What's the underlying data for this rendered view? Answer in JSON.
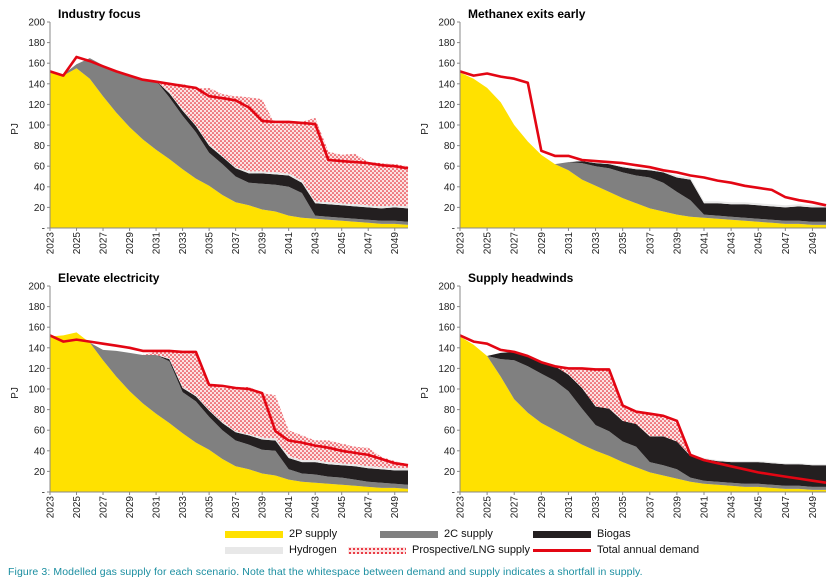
{
  "caption": "Figure 3: Modelled gas supply for each scenario. Note that the whitespace between demand and supply indicates a shortfall in supply.",
  "legend": {
    "items": [
      {
        "label": "2P supply",
        "color": "#FFE100",
        "kind": "area"
      },
      {
        "label": "2C supply",
        "color": "#808080",
        "kind": "area"
      },
      {
        "label": "Biogas",
        "color": "#231F20",
        "kind": "area"
      },
      {
        "label": "Hydrogen",
        "color": "#E8E8E8",
        "kind": "area"
      },
      {
        "label": "Prospective/LNG supply",
        "color": "#F5B7B7",
        "kind": "dotted"
      },
      {
        "label": "Total annual demand",
        "color": "#E30613",
        "kind": "line"
      }
    ]
  },
  "colors": {
    "supply_2p": "#FFE100",
    "supply_2c": "#808080",
    "biogas": "#231F20",
    "hydrogen": "#E8E8E8",
    "prospective_lng": "#F5B7B7",
    "demand": "#E30613"
  },
  "chart_data": [
    {
      "type": "area",
      "title": "Industry focus",
      "ylabel": "PJ",
      "ylim": [
        0,
        200
      ],
      "yticks": [
        0,
        20,
        40,
        60,
        80,
        100,
        120,
        140,
        160,
        180,
        200
      ],
      "xlim": [
        2023,
        2050
      ],
      "xticks": [
        "2023",
        "2025",
        "2027",
        "2029",
        "2031",
        "2033",
        "2035",
        "2037",
        "2039",
        "2041",
        "2043",
        "2045",
        "2047",
        "2049"
      ],
      "x": [
        2023,
        2024,
        2025,
        2026,
        2027,
        2028,
        2029,
        2030,
        2031,
        2032,
        2033,
        2034,
        2035,
        2036,
        2037,
        2038,
        2039,
        2040,
        2041,
        2042,
        2043,
        2044,
        2045,
        2046,
        2047,
        2048,
        2049,
        2050
      ],
      "series": [
        {
          "name": "2P supply",
          "values": [
            151,
            148,
            155,
            145,
            128,
            112,
            98,
            86,
            76,
            67,
            57,
            48,
            41,
            32,
            25,
            22,
            18,
            16,
            12,
            10,
            9,
            8,
            7,
            6,
            5,
            4,
            4,
            3
          ]
        },
        {
          "name": "2C supply",
          "values": [
            0,
            1,
            4,
            20,
            30,
            40,
            50,
            58,
            67,
            60,
            52,
            45,
            32,
            30,
            25,
            22,
            25,
            26,
            28,
            24,
            3,
            3,
            3,
            3,
            3,
            3,
            3,
            3
          ]
        },
        {
          "name": "Biogas",
          "values": [
            0,
            0,
            0,
            0,
            0,
            0,
            0,
            0,
            0,
            4,
            5,
            6,
            7,
            7,
            8,
            9,
            10,
            10,
            11,
            10,
            12,
            12,
            12,
            12,
            12,
            12,
            13,
            13
          ]
        },
        {
          "name": "Hydrogen",
          "values": [
            0,
            0,
            0,
            0,
            0,
            0,
            0,
            0,
            0,
            1,
            1,
            1,
            1,
            1,
            1,
            2,
            2,
            2,
            2,
            2,
            2,
            2,
            2,
            2,
            2,
            2,
            2,
            2
          ]
        },
        {
          "name": "Prospective/LNG supply",
          "values": [
            0,
            0,
            0,
            0,
            0,
            0,
            0,
            0,
            0,
            8,
            25,
            35,
            55,
            60,
            69,
            72,
            70,
            46,
            51,
            57,
            81,
            49,
            47,
            49,
            42,
            42,
            40,
            39
          ]
        }
      ],
      "demand": [
        152,
        148,
        166,
        162,
        157,
        152,
        148,
        144,
        142,
        140,
        138,
        136,
        128,
        126,
        124,
        117,
        104,
        103,
        103,
        102,
        101,
        66,
        65,
        64,
        63,
        61,
        60,
        58
      ]
    },
    {
      "type": "area",
      "title": "Methanex exits early",
      "ylabel": "PJ",
      "ylim": [
        0,
        200
      ],
      "yticks": [
        0,
        20,
        40,
        60,
        80,
        100,
        120,
        140,
        160,
        180,
        200
      ],
      "xlim": [
        2023,
        2050
      ],
      "xticks": [
        "2023",
        "2025",
        "2027",
        "2029",
        "2031",
        "2033",
        "2035",
        "2037",
        "2039",
        "2041",
        "2043",
        "2045",
        "2047",
        "2049"
      ],
      "x": [
        2023,
        2024,
        2025,
        2026,
        2027,
        2028,
        2029,
        2030,
        2031,
        2032,
        2033,
        2034,
        2035,
        2036,
        2037,
        2038,
        2039,
        2040,
        2041,
        2042,
        2043,
        2044,
        2045,
        2046,
        2047,
        2048,
        2049,
        2050
      ],
      "series": [
        {
          "name": "2P supply",
          "values": [
            151,
            145,
            136,
            122,
            100,
            84,
            71,
            62,
            56,
            47,
            41,
            35,
            29,
            24,
            19,
            16,
            13,
            11,
            10,
            9,
            8,
            7,
            6,
            5,
            4,
            4,
            3,
            3
          ]
        },
        {
          "name": "2C supply",
          "values": [
            0,
            0,
            0,
            0,
            0,
            0,
            0,
            0,
            8,
            16,
            19,
            23,
            25,
            27,
            30,
            28,
            22,
            16,
            3,
            3,
            3,
            3,
            3,
            3,
            3,
            3,
            3,
            3
          ]
        },
        {
          "name": "Biogas",
          "values": [
            0,
            0,
            0,
            0,
            0,
            0,
            0,
            0,
            0,
            2,
            3,
            4,
            5,
            6,
            7,
            10,
            14,
            20,
            11,
            12,
            12,
            13,
            13,
            13,
            13,
            14,
            14,
            14
          ]
        },
        {
          "name": "Hydrogen",
          "values": [
            0,
            0,
            0,
            0,
            0,
            0,
            0,
            0,
            0,
            1,
            1,
            1,
            1,
            1,
            1,
            1,
            2,
            2,
            2,
            2,
            2,
            2,
            2,
            2,
            2,
            2,
            2,
            2
          ]
        },
        {
          "name": "Prospective/LNG supply",
          "values": [
            0,
            0,
            0,
            0,
            0,
            0,
            0,
            0,
            0,
            0,
            0,
            0,
            0,
            0,
            0,
            0,
            0,
            0,
            0,
            0,
            0,
            0,
            0,
            0,
            0,
            0,
            0,
            0
          ]
        }
      ],
      "demand": [
        152,
        148,
        150,
        147,
        145,
        141,
        75,
        70,
        70,
        66,
        65,
        64,
        63,
        61,
        59,
        56,
        54,
        51,
        49,
        46,
        44,
        41,
        39,
        37,
        30,
        27,
        25,
        22
      ]
    },
    {
      "type": "area",
      "title": "Elevate electricity",
      "ylabel": "PJ",
      "ylim": [
        0,
        200
      ],
      "yticks": [
        0,
        20,
        40,
        60,
        80,
        100,
        120,
        140,
        160,
        180,
        200
      ],
      "xlim": [
        2023,
        2050
      ],
      "xticks": [
        "2023",
        "2025",
        "2027",
        "2029",
        "2031",
        "2033",
        "2035",
        "2037",
        "2039",
        "2041",
        "2043",
        "2045",
        "2047",
        "2049"
      ],
      "x": [
        2023,
        2024,
        2025,
        2026,
        2027,
        2028,
        2029,
        2030,
        2031,
        2032,
        2033,
        2034,
        2035,
        2036,
        2037,
        2038,
        2039,
        2040,
        2041,
        2042,
        2043,
        2044,
        2045,
        2046,
        2047,
        2048,
        2049,
        2050
      ],
      "series": [
        {
          "name": "2P supply",
          "values": [
            151,
            152,
            155,
            145,
            128,
            112,
            98,
            86,
            76,
            67,
            57,
            48,
            41,
            32,
            25,
            22,
            18,
            16,
            12,
            10,
            9,
            8,
            7,
            6,
            5,
            4,
            4,
            3
          ]
        },
        {
          "name": "2C supply",
          "values": [
            0,
            0,
            0,
            0,
            10,
            25,
            37,
            47,
            57,
            60,
            40,
            40,
            32,
            28,
            25,
            24,
            23,
            24,
            10,
            8,
            8,
            7,
            7,
            6,
            5,
            5,
            4,
            4
          ]
        },
        {
          "name": "Biogas",
          "values": [
            0,
            0,
            0,
            0,
            0,
            0,
            0,
            0,
            0,
            2,
            4,
            5,
            6,
            7,
            8,
            9,
            10,
            10,
            11,
            11,
            12,
            12,
            12,
            13,
            13,
            13,
            13,
            14
          ]
        },
        {
          "name": "Hydrogen",
          "values": [
            0,
            0,
            0,
            0,
            0,
            0,
            0,
            0,
            0,
            1,
            1,
            1,
            1,
            1,
            1,
            1,
            2,
            2,
            2,
            2,
            2,
            2,
            2,
            2,
            2,
            2,
            2,
            2
          ]
        },
        {
          "name": "Prospective/LNG supply",
          "values": [
            0,
            0,
            0,
            0,
            0,
            0,
            0,
            0,
            3,
            8,
            33,
            42,
            24,
            33,
            42,
            46,
            43,
            42,
            25,
            24,
            19,
            21,
            19,
            17,
            18,
            10,
            7,
            4
          ]
        }
      ],
      "demand": [
        152,
        146,
        148,
        146,
        144,
        142,
        140,
        137,
        137,
        137,
        136,
        136,
        104,
        103,
        101,
        100,
        96,
        59,
        50,
        48,
        45,
        43,
        40,
        38,
        36,
        32,
        28,
        26
      ]
    },
    {
      "type": "area",
      "title": "Supply headwinds",
      "ylabel": "PJ",
      "ylim": [
        0,
        200
      ],
      "yticks": [
        0,
        20,
        40,
        60,
        80,
        100,
        120,
        140,
        160,
        180,
        200
      ],
      "xlim": [
        2023,
        2050
      ],
      "xticks": [
        "2023",
        "2025",
        "2027",
        "2029",
        "2031",
        "2033",
        "2035",
        "2037",
        "2039",
        "2041",
        "2043",
        "2045",
        "2047",
        "2049"
      ],
      "x": [
        2023,
        2024,
        2025,
        2026,
        2027,
        2028,
        2029,
        2030,
        2031,
        2032,
        2033,
        2034,
        2035,
        2036,
        2037,
        2038,
        2039,
        2040,
        2041,
        2042,
        2043,
        2044,
        2045,
        2046,
        2047,
        2048,
        2049,
        2050
      ],
      "series": [
        {
          "name": "2P supply",
          "values": [
            151,
            143,
            132,
            112,
            90,
            77,
            67,
            60,
            53,
            46,
            40,
            35,
            29,
            24,
            19,
            16,
            13,
            10,
            8,
            7,
            6,
            5,
            5,
            4,
            3,
            3,
            2,
            2
          ]
        },
        {
          "name": "2C supply",
          "values": [
            0,
            0,
            0,
            17,
            38,
            45,
            48,
            48,
            45,
            35,
            25,
            24,
            20,
            20,
            10,
            10,
            9,
            4,
            3,
            3,
            3,
            3,
            3,
            3,
            3,
            3,
            3,
            3
          ]
        },
        {
          "name": "Biogas",
          "values": [
            0,
            0,
            0,
            6,
            8,
            10,
            11,
            14,
            16,
            20,
            18,
            22,
            20,
            22,
            25,
            28,
            27,
            21,
            21,
            20,
            20,
            21,
            21,
            21,
            21,
            21,
            21,
            21
          ]
        },
        {
          "name": "Hydrogen",
          "values": [
            0,
            0,
            0,
            0,
            0,
            0,
            0,
            0,
            0,
            0,
            0,
            0,
            0,
            0,
            0,
            0,
            0,
            1,
            1,
            1,
            1,
            1,
            1,
            1,
            1,
            1,
            1,
            1
          ]
        },
        {
          "name": "Prospective/LNG supply",
          "values": [
            0,
            0,
            0,
            0,
            0,
            0,
            0,
            0,
            6,
            19,
            36,
            38,
            15,
            11,
            22,
            20,
            17,
            0,
            0,
            0,
            0,
            0,
            0,
            0,
            0,
            0,
            0,
            0
          ]
        }
      ],
      "demand": [
        152,
        146,
        144,
        138,
        136,
        132,
        126,
        122,
        120,
        120,
        119,
        119,
        84,
        78,
        76,
        74,
        69,
        36,
        31,
        28,
        25,
        22,
        19,
        17,
        15,
        13,
        11,
        9
      ]
    }
  ]
}
